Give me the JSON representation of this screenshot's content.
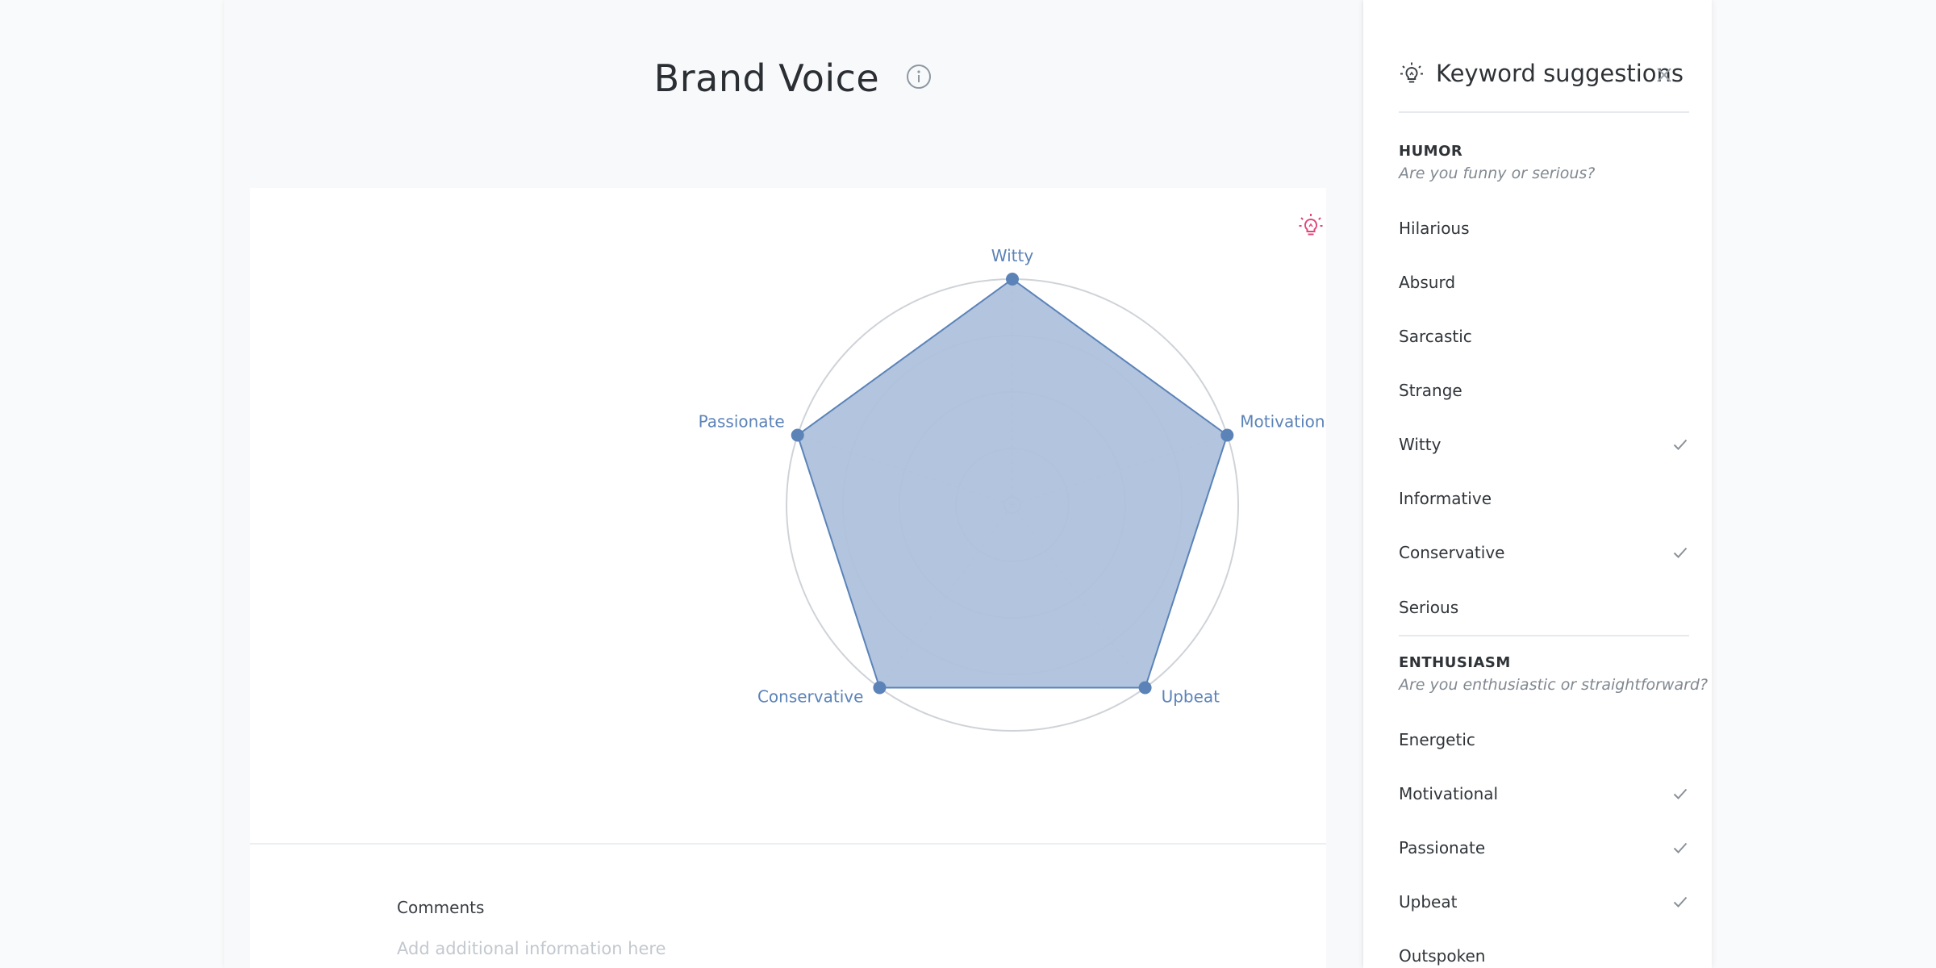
{
  "page": {
    "title": "Brand Voice"
  },
  "chart_data": {
    "type": "radar",
    "categories": [
      "Witty",
      "Motivational",
      "Upbeat",
      "Conservative",
      "Passionate"
    ],
    "values": [
      1,
      1,
      1,
      1,
      1
    ],
    "rlim": [
      0,
      1
    ],
    "rings": 4,
    "fill_color": "#aec1dc",
    "line_color": "#5b83b8",
    "label_color": "#5b83b8"
  },
  "comments": {
    "label": "Comments",
    "placeholder": "Add additional information here"
  },
  "sidebar": {
    "title": "Keyword suggestions",
    "sections": [
      {
        "title": "HUMOR",
        "subtitle": "Are you funny or serious?",
        "items": [
          {
            "label": "Hilarious",
            "selected": false
          },
          {
            "label": "Absurd",
            "selected": false
          },
          {
            "label": "Sarcastic",
            "selected": false
          },
          {
            "label": "Strange",
            "selected": false
          },
          {
            "label": "Witty",
            "selected": true
          },
          {
            "label": "Informative",
            "selected": false
          },
          {
            "label": "Conservative",
            "selected": true
          },
          {
            "label": "Serious",
            "selected": false
          }
        ]
      },
      {
        "title": "ENTHUSIASM",
        "subtitle": "Are you enthusiastic or straightforward?",
        "items": [
          {
            "label": "Energetic",
            "selected": false
          },
          {
            "label": "Motivational",
            "selected": true
          },
          {
            "label": "Passionate",
            "selected": true
          },
          {
            "label": "Upbeat",
            "selected": true
          },
          {
            "label": "Outspoken",
            "selected": false
          }
        ]
      }
    ]
  },
  "icons": {
    "info": "info-circle-icon",
    "idea": "lightbulb-icon",
    "bulb": "lightbulb-icon",
    "close": "close-icon",
    "check": "check-icon"
  },
  "colors": {
    "accent": "#5b83b8",
    "idea_icon": "#e0467c",
    "check": "#8a9299"
  }
}
